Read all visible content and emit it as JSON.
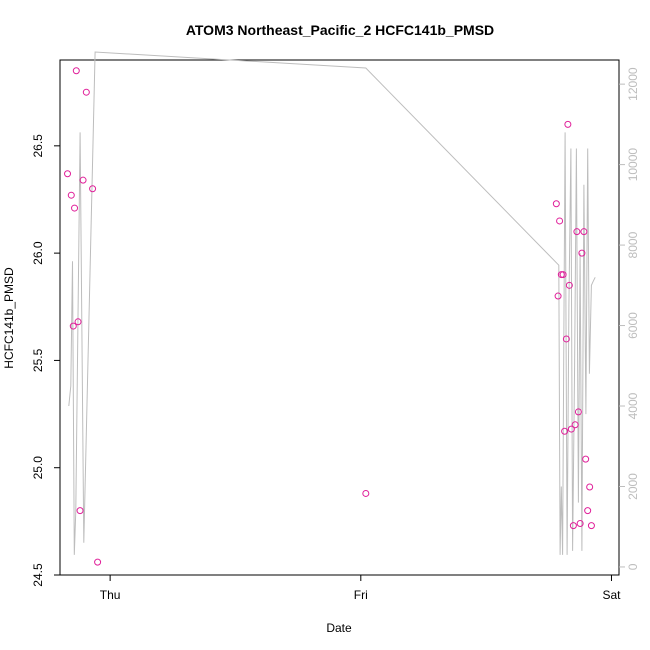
{
  "chart_data": {
    "type": "scatter",
    "title": "ATOM3 Northeast_Pacific_2 HCFC141b_PMSD",
    "xlabel": "Date",
    "ylabel": "HCFC141b_PMSD",
    "x_tick_labels": [
      "Thu",
      "Fri",
      "Sat"
    ],
    "x_tick_positions_days": [
      0,
      1,
      2
    ],
    "xlim_days": [
      -0.2,
      2.03
    ],
    "ylim": [
      24.5,
      26.9
    ],
    "y_ticks": [
      24.5,
      25.0,
      25.5,
      26.0,
      26.5
    ],
    "y_tick_labels": [
      "24.5",
      "25.0",
      "25.5",
      "26.0",
      "26.5"
    ],
    "y2lim": [
      -200,
      12600
    ],
    "y2_ticks": [
      0,
      2000,
      4000,
      6000,
      8000,
      10000,
      12000
    ],
    "y2_tick_labels": [
      "0",
      "2000",
      "4000",
      "6000",
      "8000",
      "10000",
      "12000"
    ],
    "grid": false,
    "colors": {
      "points": "#e0209a",
      "line": "#bdbdbd",
      "axis": "#000000",
      "right_axis": "#bdbdbd"
    },
    "series": [
      {
        "type": "scatter",
        "x_days": [
          -0.17,
          -0.155,
          -0.147,
          -0.142,
          -0.135,
          -0.128,
          -0.12,
          -0.108,
          -0.095,
          -0.07,
          -0.05,
          1.02,
          1.78,
          1.787,
          1.793,
          1.8,
          1.807,
          1.813,
          1.82,
          1.826,
          1.832,
          1.84,
          1.848,
          1.855,
          1.862,
          1.868,
          1.875,
          1.882,
          1.89,
          1.897,
          1.905,
          1.913,
          1.92
        ],
        "y": [
          26.37,
          26.27,
          25.66,
          26.21,
          26.85,
          25.68,
          24.8,
          26.34,
          26.75,
          26.3,
          24.56,
          24.88,
          26.23,
          25.8,
          26.15,
          25.9,
          25.9,
          25.17,
          25.6,
          26.6,
          25.85,
          25.18,
          24.73,
          25.2,
          26.1,
          25.26,
          24.74,
          26.0,
          26.1,
          25.04,
          24.8,
          24.91,
          24.73
        ]
      },
      {
        "type": "line",
        "axis": "right",
        "x_days": [
          -0.165,
          -0.157,
          -0.15,
          -0.143,
          -0.137,
          -0.12,
          -0.105,
          -0.06,
          1.02,
          1.79,
          1.79,
          1.795,
          1.8,
          1.805,
          1.81,
          1.815,
          1.823,
          1.83,
          1.838,
          1.845,
          1.853,
          1.86,
          1.868,
          1.875,
          1.882,
          1.89,
          1.898,
          1.905,
          1.912,
          1.92,
          1.927,
          1.935
        ],
        "y2": [
          4000,
          4500,
          7600,
          300,
          1400,
          10800,
          600,
          12800,
          12400,
          7500,
          7500,
          300,
          2000,
          300,
          6000,
          10800,
          300,
          6500,
          10400,
          400,
          5000,
          10400,
          1600,
          7800,
          400,
          9500,
          3800,
          10400,
          4800,
          7000,
          7100,
          7200
        ]
      }
    ]
  }
}
